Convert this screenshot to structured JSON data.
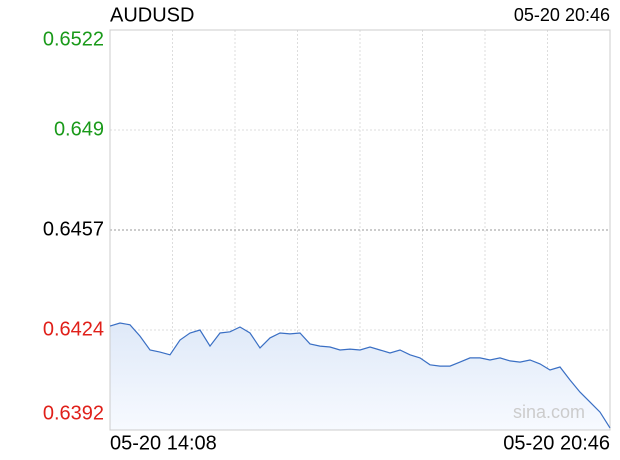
{
  "chart_data": {
    "type": "line",
    "title": "AUDUSD",
    "timestamp": "05-20 20:46",
    "xlabels": [
      "05-20 14:08",
      "05-20 20:46"
    ],
    "watermark": "sina.com",
    "color": "#3a6fc4",
    "ylim": [
      0.6391,
      0.6523
    ],
    "yticks": [
      0.6522,
      0.649,
      0.6457,
      0.6424,
      0.6392
    ],
    "values": [
      0.64253,
      0.64263,
      0.64257,
      0.6422,
      0.64174,
      0.64167,
      0.64158,
      0.64207,
      0.6423,
      0.6424,
      0.64187,
      0.6423,
      0.64234,
      0.6425,
      0.6423,
      0.64181,
      0.64214,
      0.6423,
      0.64227,
      0.6423,
      0.64194,
      0.64187,
      0.64184,
      0.64174,
      0.64177,
      0.64174,
      0.64184,
      0.64174,
      0.64164,
      0.64174,
      0.64158,
      0.64148,
      0.64125,
      0.64121,
      0.64121,
      0.64134,
      0.64148,
      0.64148,
      0.64141,
      0.64148,
      0.64138,
      0.64134,
      0.64141,
      0.64128,
      0.64108,
      0.64118,
      0.64075,
      0.64035,
      0.64002,
      0.63969,
      0.63917
    ]
  }
}
